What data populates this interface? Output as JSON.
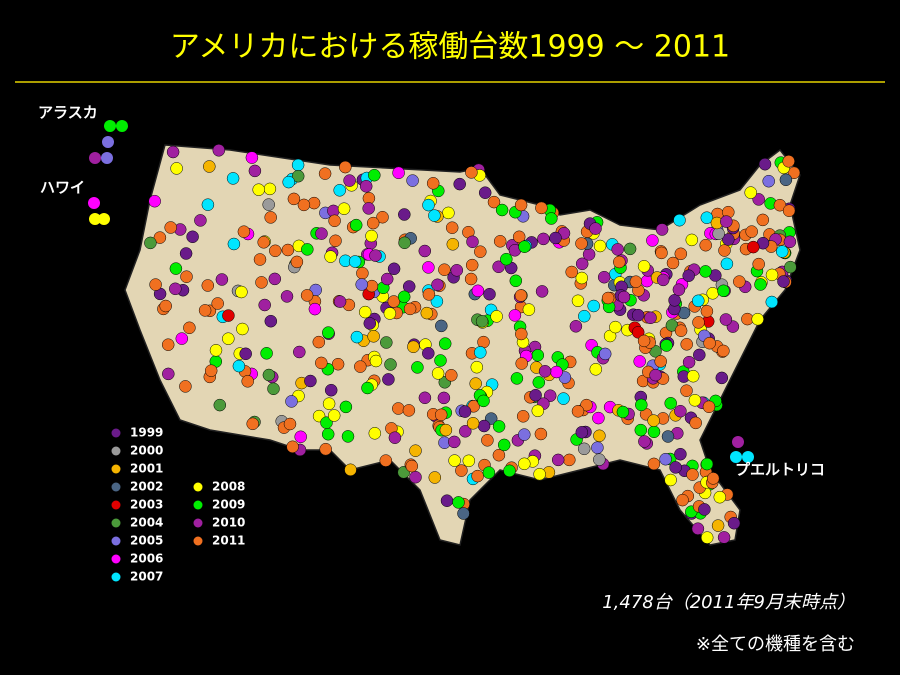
{
  "title": "アメリカにおける稼働台数1999 ～ 2011",
  "regions": {
    "alaska": "アラスカ",
    "hawaii": "ハワイ",
    "puerto_rico": "プエルトリコ"
  },
  "legend": [
    {
      "label": "1999",
      "color": "#6a1b8a"
    },
    {
      "label": "2000",
      "color": "#9a9a9a"
    },
    {
      "label": "2001",
      "color": "#f5b400"
    },
    {
      "label": "2002",
      "color": "#4a6584"
    },
    {
      "label": "2003",
      "color": "#e00000"
    },
    {
      "label": "2004",
      "color": "#4b9a3a"
    },
    {
      "label": "2005",
      "color": "#7b6fe0"
    },
    {
      "label": "2006",
      "color": "#ff00ff"
    },
    {
      "label": "2007",
      "color": "#00e5ff"
    },
    {
      "label": "2008",
      "color": "#ffff00"
    },
    {
      "label": "2009",
      "color": "#00ee00"
    },
    {
      "label": "2010",
      "color": "#a020a0"
    },
    {
      "label": "2011",
      "color": "#f07020"
    }
  ],
  "total": "1,478台（2011年9月末時点）",
  "note": "※全ての機種を含む"
}
